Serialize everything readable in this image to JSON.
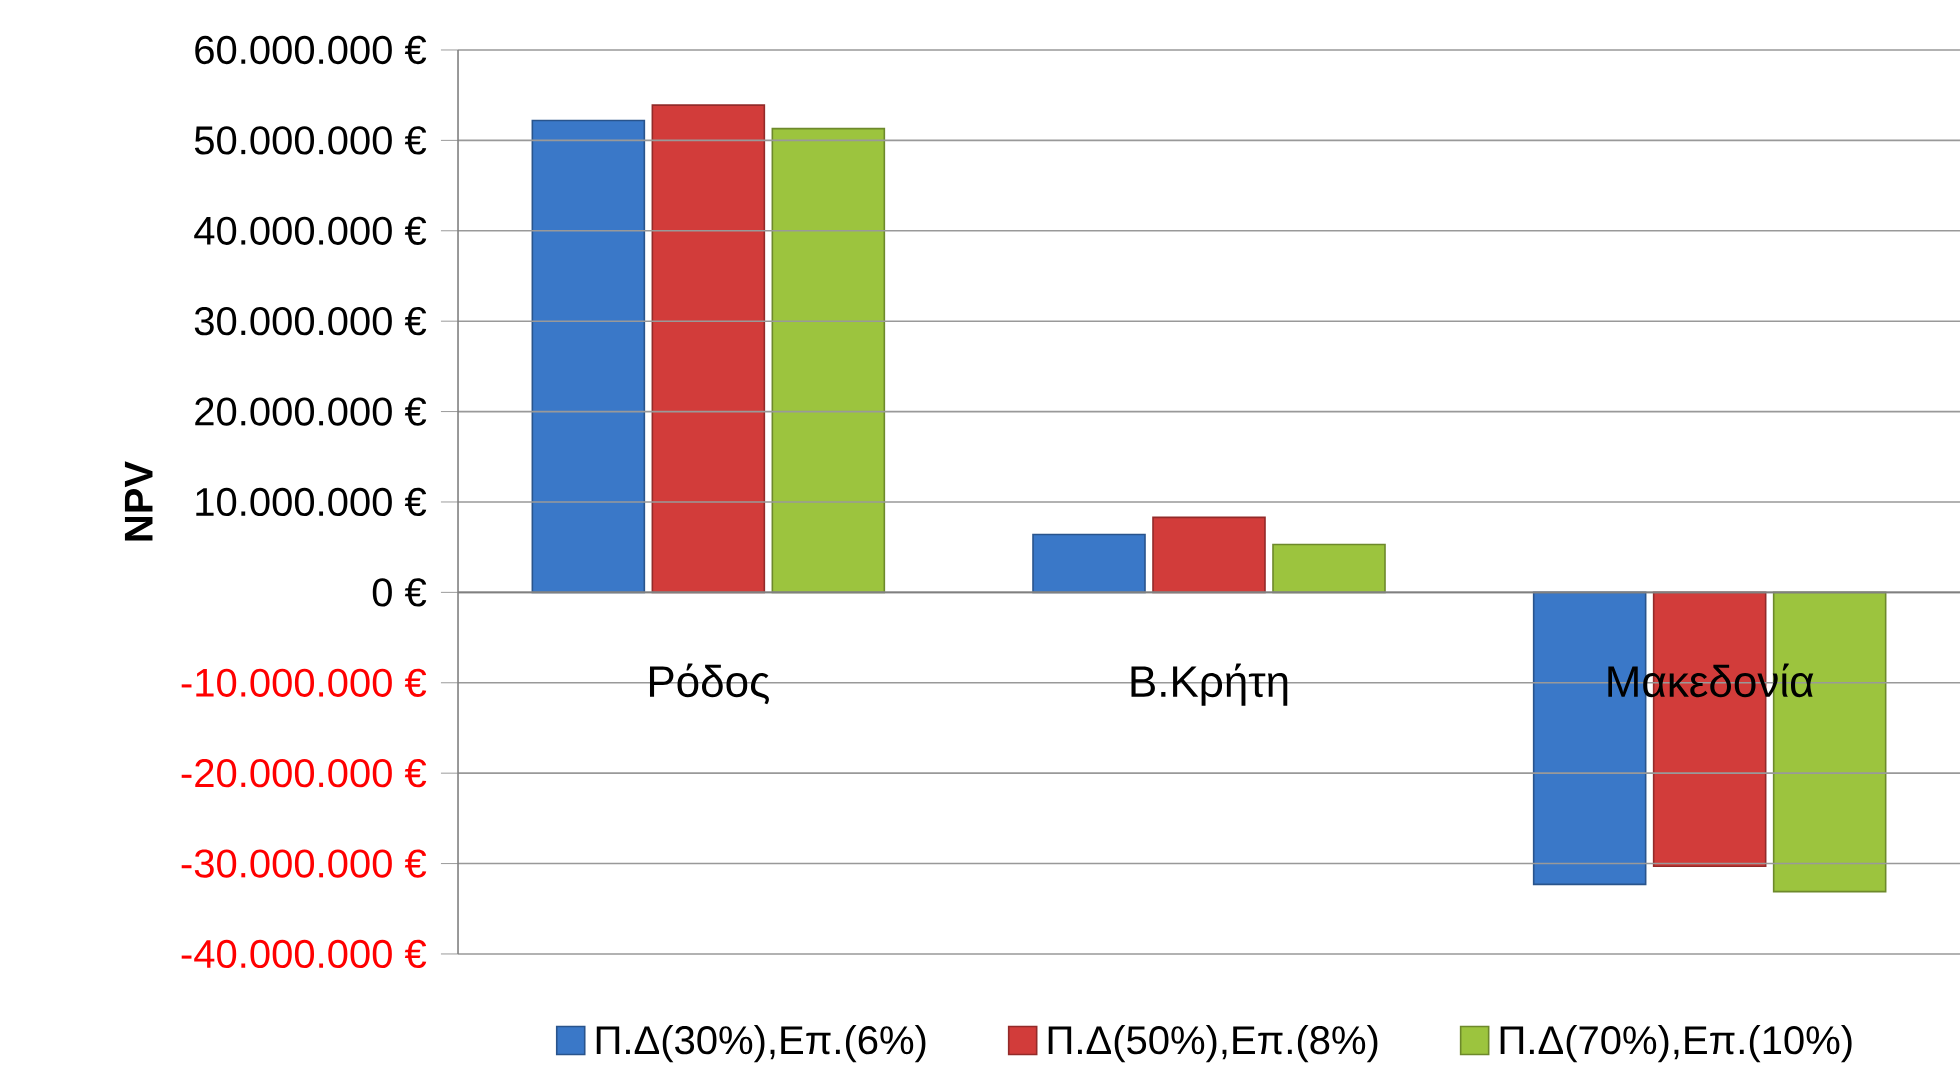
{
  "chart_data": {
    "type": "bar",
    "ylabel": "NPV",
    "categories": [
      "Ρόδος",
      "Β.Κρήτη",
      "Μακεδονία"
    ],
    "series": [
      {
        "name": "Π.Δ(30%),Επ.(6%)",
        "color": "#3a78c8",
        "values": [
          52200000,
          6400000,
          -32300000
        ]
      },
      {
        "name": "Π.Δ(50%),Επ.(8%)",
        "color": "#d23c3a",
        "values": [
          53900000,
          8300000,
          -30300000
        ]
      },
      {
        "name": "Π.Δ(70%),Επ.(10%)",
        "color": "#9cc43e",
        "values": [
          51300000,
          5300000,
          -33100000
        ]
      }
    ],
    "ylim": [
      -40000000,
      60000000
    ],
    "yticks": [
      {
        "value": -40000000,
        "label": "-40.000.000 €"
      },
      {
        "value": -30000000,
        "label": "-30.000.000 €"
      },
      {
        "value": -20000000,
        "label": "-20.000.000 €"
      },
      {
        "value": -10000000,
        "label": "-10.000.000 €"
      },
      {
        "value": 0,
        "label": "0 €"
      },
      {
        "value": 10000000,
        "label": "10.000.000 €"
      },
      {
        "value": 20000000,
        "label": "20.000.000 €"
      },
      {
        "value": 30000000,
        "label": "30.000.000 €"
      },
      {
        "value": 40000000,
        "label": "40.000.000 €"
      },
      {
        "value": 50000000,
        "label": "50.000.000 €"
      },
      {
        "value": 60000000,
        "label": "60.000.000 €"
      }
    ],
    "grid": "y",
    "legend": "bottom"
  }
}
